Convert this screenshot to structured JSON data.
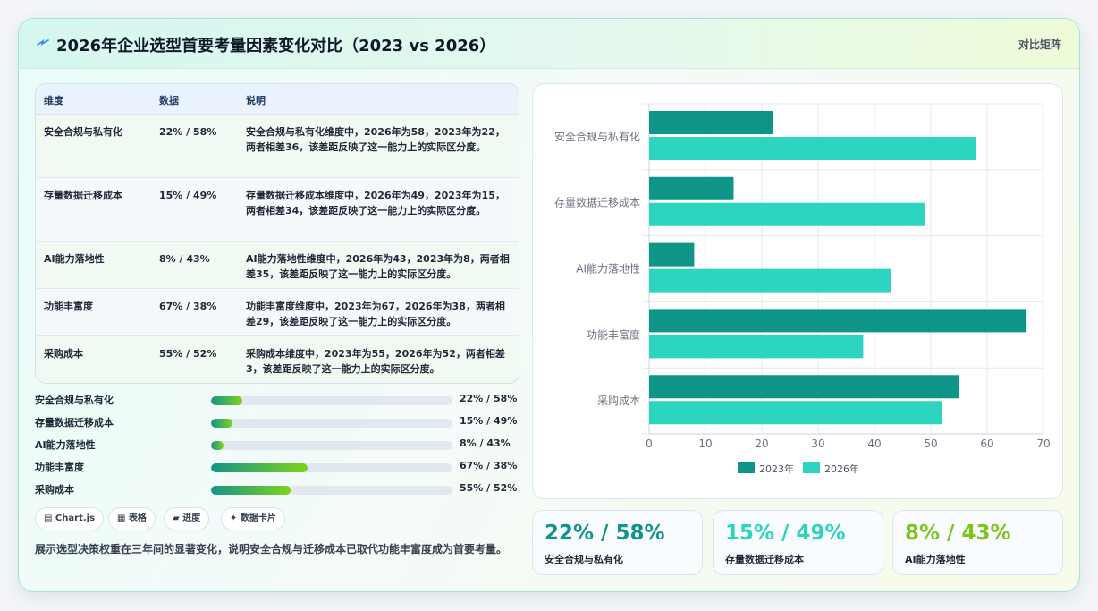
{
  "header": {
    "title": "2026年企业选型首要考量因素变化对比（2023 vs 2026）",
    "badge": "对比矩阵"
  },
  "table": {
    "columns": [
      "维度",
      "数据",
      "说明"
    ],
    "rows": [
      {
        "dim": "安全合规与私有化",
        "data": "22% / 58%",
        "desc": "安全合规与私有化维度中，2026年为58，2023年为22，两者相差36，该差距反映了这一能力上的实际区分度。"
      },
      {
        "dim": "存量数据迁移成本",
        "data": "15% / 49%",
        "desc": "存量数据迁移成本维度中，2026年为49，2023年为15，两者相差34，该差距反映了这一能力上的实际区分度。"
      },
      {
        "dim": "AI能力落地性",
        "data": "8% / 43%",
        "desc": "AI能力落地性维度中，2026年为43，2023年为8，两者相差35，该差距反映了这一能力上的实际区分度。"
      },
      {
        "dim": "功能丰富度",
        "data": "67% / 38%",
        "desc": "功能丰富度维度中，2023年为67，2026年为38，两者相差29，该差距反映了这一能力上的实际区分度。"
      },
      {
        "dim": "采购成本",
        "data": "55% / 52%",
        "desc": "采购成本维度中，2023年为55，2026年为52，两者相差3，该差距反映了这一能力上的实际区分度。"
      }
    ]
  },
  "progress": [
    {
      "label": "安全合规与私有化",
      "value": "22% / 58%",
      "fill": 0.13
    },
    {
      "label": "存量数据迁移成本",
      "value": "15% / 49%",
      "fill": 0.09
    },
    {
      "label": "AI能力落地性",
      "value": "8% / 43%",
      "fill": 0.05
    },
    {
      "label": "功能丰富度",
      "value": "67% / 38%",
      "fill": 0.4
    },
    {
      "label": "采购成本",
      "value": "55% / 52%",
      "fill": 0.33
    }
  ],
  "chips": [
    "▤ Chart.js",
    "▦ 表格",
    "▰ 进度",
    "✦ 数据卡片"
  ],
  "note": "展示选型决策权重在三年间的显著变化，说明安全合规与迁移成本已取代功能丰富度成为首要考量。",
  "stats": [
    {
      "value": "22% / 58%",
      "label": "安全合规与私有化",
      "color": "#13948a"
    },
    {
      "value": "15% / 49%",
      "label": "存量数据迁移成本",
      "color": "#2ed3bd"
    },
    {
      "value": "8% / 43%",
      "label": "AI能力落地性",
      "color": "#7cc61a"
    }
  ],
  "colors": {
    "s2023": "#0f9488",
    "s2026": "#2dd4bf"
  },
  "chart_data": {
    "type": "bar",
    "orientation": "horizontal",
    "categories": [
      "安全合规与私有化",
      "存量数据迁移成本",
      "AI能力落地性",
      "功能丰富度",
      "采购成本"
    ],
    "series": [
      {
        "name": "2023年",
        "values": [
          22,
          15,
          8,
          67,
          55
        ]
      },
      {
        "name": "2026年",
        "values": [
          58,
          49,
          43,
          38,
          52
        ]
      }
    ],
    "xlim": [
      0,
      70
    ],
    "xticks": [
      0,
      10,
      20,
      30,
      40,
      50,
      60,
      70
    ],
    "grid": true,
    "legend": "bottom"
  }
}
